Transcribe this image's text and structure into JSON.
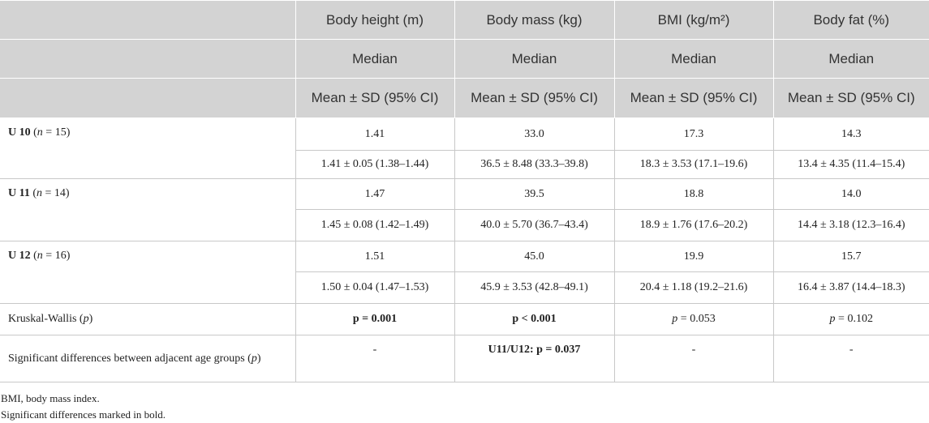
{
  "header": {
    "rows": [
      [
        "Body height (m)",
        "Body mass (kg)",
        "BMI (kg/m²)",
        "Body fat (%)"
      ],
      [
        "Median",
        "Median",
        "Median",
        "Median"
      ],
      [
        "Mean ± SD (95% CI)",
        "Mean ± SD (95% CI)",
        "Mean ± SD (95% CI)",
        "Mean ± SD (95% CI)"
      ]
    ]
  },
  "groups": [
    {
      "label": [
        {
          "text": "U 10",
          "bold": true
        },
        {
          "text": " ("
        },
        {
          "text": "n",
          "italic": true
        },
        {
          "text": " = 15)"
        }
      ],
      "median": [
        "1.41",
        "33.0",
        "17.3",
        "14.3"
      ],
      "mean": [
        "1.41 ± 0.05 (1.38–1.44)",
        "36.5 ± 8.48 (33.3–39.8)",
        "18.3 ± 3.53 (17.1–19.6)",
        "13.4 ± 4.35 (11.4–15.4)"
      ]
    },
    {
      "label": [
        {
          "text": "U 11",
          "bold": true
        },
        {
          "text": " ("
        },
        {
          "text": "n",
          "italic": true
        },
        {
          "text": " = 14)"
        }
      ],
      "median": [
        "1.47",
        "39.5",
        "18.8",
        "14.0"
      ],
      "mean": [
        "1.45 ± 0.08 (1.42–1.49)",
        "40.0 ± 5.70 (36.7–43.4)",
        "18.9 ± 1.76 (17.6–20.2)",
        "14.4 ± 3.18 (12.3–16.4)"
      ]
    },
    {
      "label": [
        {
          "text": "U 12",
          "bold": true
        },
        {
          "text": " ("
        },
        {
          "text": "n",
          "italic": true
        },
        {
          "text": " = 16)"
        }
      ],
      "median": [
        "1.51",
        "45.0",
        "19.9",
        "15.7"
      ],
      "mean": [
        "1.50 ± 0.04 (1.47–1.53)",
        "45.9 ± 3.53 (42.8–49.1)",
        "20.4 ± 1.18 (19.2–21.6)",
        "16.4 ± 3.87 (14.4–18.3)"
      ]
    }
  ],
  "tests": [
    {
      "label": [
        {
          "text": "Kruskal-Wallis ("
        },
        {
          "text": "p",
          "italic": true
        },
        {
          "text": ")"
        }
      ],
      "cells": [
        {
          "text": "p = 0.001",
          "bold": true
        },
        {
          "text": "p < 0.001",
          "bold": true
        },
        [
          {
            "text": "p",
            "italic": true
          },
          {
            "text": " = 0.053"
          }
        ],
        [
          {
            "text": "p",
            "italic": true
          },
          {
            "text": " = 0.102"
          }
        ]
      ]
    },
    {
      "label": [
        {
          "text": "Significant differences between adjacent age groups ("
        },
        {
          "text": "p",
          "italic": true
        },
        {
          "text": ")"
        }
      ],
      "cells": [
        "-",
        {
          "text": "U11/U12: p = 0.037",
          "bold": true
        },
        "-",
        "-"
      ]
    }
  ],
  "footnotes": [
    "BMI, body mass index.",
    "Significant differences marked in bold."
  ]
}
